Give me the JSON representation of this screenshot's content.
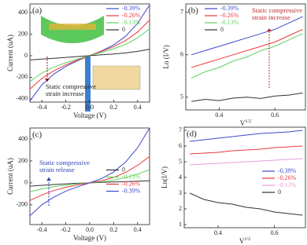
{
  "chart_data": [
    {
      "type": "line",
      "label": "(a)",
      "x_label": "Voltage (V)",
      "y_label": "Current (uA)",
      "x": [
        -0.5,
        -0.4,
        -0.3,
        -0.2,
        -0.1,
        0,
        0.1,
        0.2,
        0.3,
        0.4,
        0.5
      ],
      "xlim": [
        -0.5,
        0.5
      ],
      "xticks": [
        -0.4,
        -0.2,
        {
          "value": 0,
          "label": "0.0"
        },
        0.2,
        0.4
      ],
      "ylim": [
        -430,
        480
      ],
      "yticks": [
        -400,
        -200,
        0,
        200,
        400
      ],
      "legend_position": "upper right",
      "annotation": [
        "Static compressive",
        "strain increase"
      ],
      "series": [
        {
          "name": "-0.39%",
          "color": "#3f48cc",
          "values": [
            -420,
            -270,
            -170,
            -100,
            -45,
            0,
            45,
            100,
            180,
            300,
            470
          ]
        },
        {
          "name": "-0.26%",
          "color": "#e8383d",
          "values": [
            -310,
            -210,
            -140,
            -85,
            -40,
            0,
            40,
            85,
            140,
            220,
            330
          ]
        },
        {
          "name": "-0.13%",
          "color": "#5fd35f",
          "values": [
            -240,
            -160,
            -105,
            -65,
            -30,
            0,
            30,
            65,
            105,
            165,
            250
          ]
        },
        {
          "name": "0",
          "color": "#333333",
          "values": [
            -40,
            -32,
            -24,
            -16,
            -8,
            0,
            8,
            16,
            26,
            40,
            60
          ]
        }
      ]
    },
    {
      "type": "line",
      "label": "(b)",
      "x_label": "V",
      "x_label_sup": "1/2",
      "y_label": "Ln (I/V)",
      "x": [
        0.3,
        0.35,
        0.4,
        0.45,
        0.5,
        0.55,
        0.6,
        0.65,
        0.7
      ],
      "xlim": [
        0.28,
        0.71
      ],
      "xticks": [
        0.4,
        0.6
      ],
      "ylim": [
        4.7,
        7.2
      ],
      "yticks": [
        5,
        6,
        7
      ],
      "legend_position": "upper left",
      "annotation": [
        "Static compressive",
        "strain increase"
      ],
      "series": [
        {
          "name": "-0.39%",
          "color": "#3f48cc",
          "values": [
            6.0,
            6.1,
            6.2,
            6.3,
            6.4,
            6.5,
            6.6,
            6.75,
            6.9
          ]
        },
        {
          "name": "-0.26%",
          "color": "#e8383d",
          "values": [
            5.7,
            5.8,
            5.9,
            6.0,
            6.1,
            6.2,
            6.3,
            6.45,
            6.6
          ]
        },
        {
          "name": "-0.13%",
          "color": "#5fd35f",
          "values": [
            5.45,
            5.6,
            5.7,
            5.85,
            5.95,
            6.1,
            6.2,
            6.35,
            6.5
          ]
        },
        {
          "name": "0",
          "color": "#333333",
          "values": [
            4.9,
            4.95,
            4.92,
            4.98,
            5.0,
            4.97,
            5.03,
            5.05,
            5.1
          ]
        }
      ]
    },
    {
      "type": "line",
      "label": "(c)",
      "x_label": "Voltage (V)",
      "y_label": "Current (uA)",
      "x": [
        -0.5,
        -0.4,
        -0.3,
        -0.2,
        -0.1,
        0,
        0.1,
        0.2,
        0.3,
        0.4,
        0.5
      ],
      "xlim": [
        -0.5,
        0.5
      ],
      "xticks": [
        -0.4,
        -0.2,
        {
          "value": 0,
          "label": "0.0"
        },
        0.2,
        0.4
      ],
      "ylim": [
        -380,
        500
      ],
      "yticks": [
        -200,
        0,
        200,
        400
      ],
      "legend_position": "right",
      "annotation": [
        "Static compressive",
        "strain release"
      ],
      "series": [
        {
          "name": "0",
          "color": "#333333",
          "values": [
            -30,
            -22,
            -15,
            -9,
            -4,
            0,
            4,
            8,
            12,
            16,
            20
          ]
        },
        {
          "name": "-0.13%",
          "color": "#5fd35f",
          "values": [
            -80,
            -55,
            -35,
            -20,
            -9,
            0,
            10,
            25,
            48,
            80,
            120
          ]
        },
        {
          "name": "-0.26%",
          "color": "#e8383d",
          "values": [
            -160,
            -110,
            -70,
            -40,
            -18,
            0,
            20,
            50,
            95,
            160,
            240
          ]
        },
        {
          "name": "-0.39%",
          "color": "#3f48cc",
          "values": [
            -300,
            -200,
            -130,
            -75,
            -35,
            0,
            40,
            100,
            190,
            320,
            500
          ]
        }
      ]
    },
    {
      "type": "line",
      "label": "(d)",
      "x_label": "V",
      "x_label_sup": "1/2",
      "y_label": "Ln(I/V)",
      "x": [
        0.3,
        0.35,
        0.4,
        0.45,
        0.5,
        0.55,
        0.6,
        0.65,
        0.7
      ],
      "xlim": [
        0.28,
        0.71
      ],
      "xticks": [
        0.4,
        0.6
      ],
      "ylim": [
        0.8,
        7.2
      ],
      "yticks": [
        1,
        2,
        3,
        4,
        5,
        6,
        7
      ],
      "legend_position": "right",
      "series": [
        {
          "name": "-0.39%",
          "color": "#3f48cc",
          "values": [
            6.3,
            6.4,
            6.5,
            6.6,
            6.7,
            6.8,
            6.85,
            6.9,
            7.0
          ]
        },
        {
          "name": "-0.26%",
          "color": "#e8383d",
          "values": [
            5.5,
            5.55,
            5.6,
            5.7,
            5.75,
            5.8,
            5.9,
            5.95,
            6.0
          ]
        },
        {
          "name": "-0.13%",
          "color": "#e89bd8",
          "values": [
            4.8,
            4.85,
            4.9,
            4.95,
            5.0,
            5.05,
            5.1,
            5.15,
            5.2
          ]
        },
        {
          "name": "0",
          "color": "#333333",
          "values": [
            3.0,
            2.6,
            2.4,
            2.3,
            2.1,
            2.0,
            1.8,
            1.7,
            1.6
          ]
        }
      ]
    }
  ]
}
